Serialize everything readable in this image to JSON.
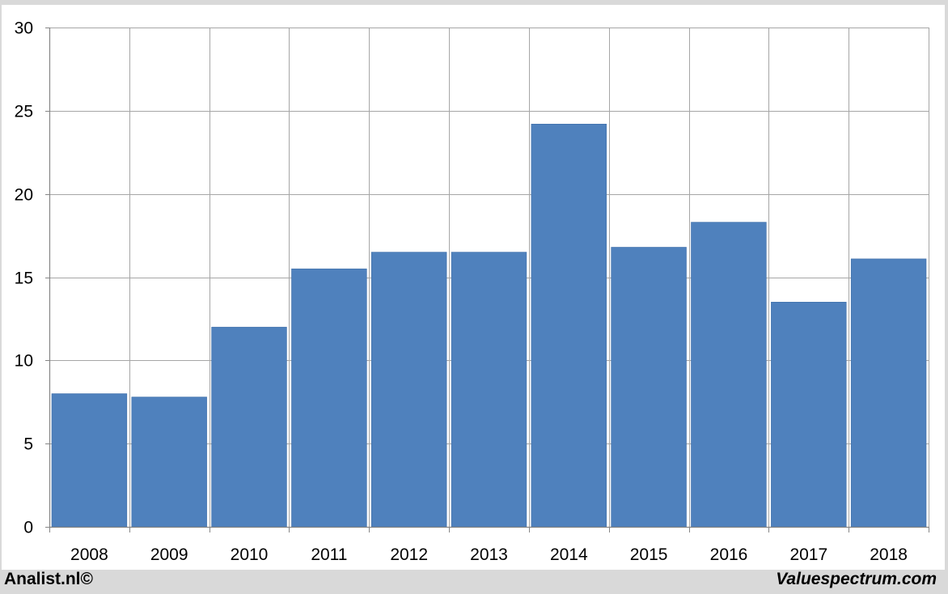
{
  "chart_data": {
    "type": "bar",
    "categories": [
      "2008",
      "2009",
      "2010",
      "2011",
      "2012",
      "2013",
      "2014",
      "2015",
      "2016",
      "2017",
      "2018"
    ],
    "values": [
      8.0,
      7.8,
      12.0,
      15.5,
      16.5,
      16.5,
      24.2,
      16.8,
      18.3,
      13.5,
      16.1
    ],
    "ylim": [
      0,
      30
    ],
    "yticks": [
      0,
      5,
      10,
      15,
      20,
      25,
      30
    ],
    "grid": true,
    "bar_color": "#4f81bd",
    "grid_color": "#a6a6a6"
  },
  "footer": {
    "left": "Analist.nl©",
    "right": "Valuespectrum.com"
  }
}
